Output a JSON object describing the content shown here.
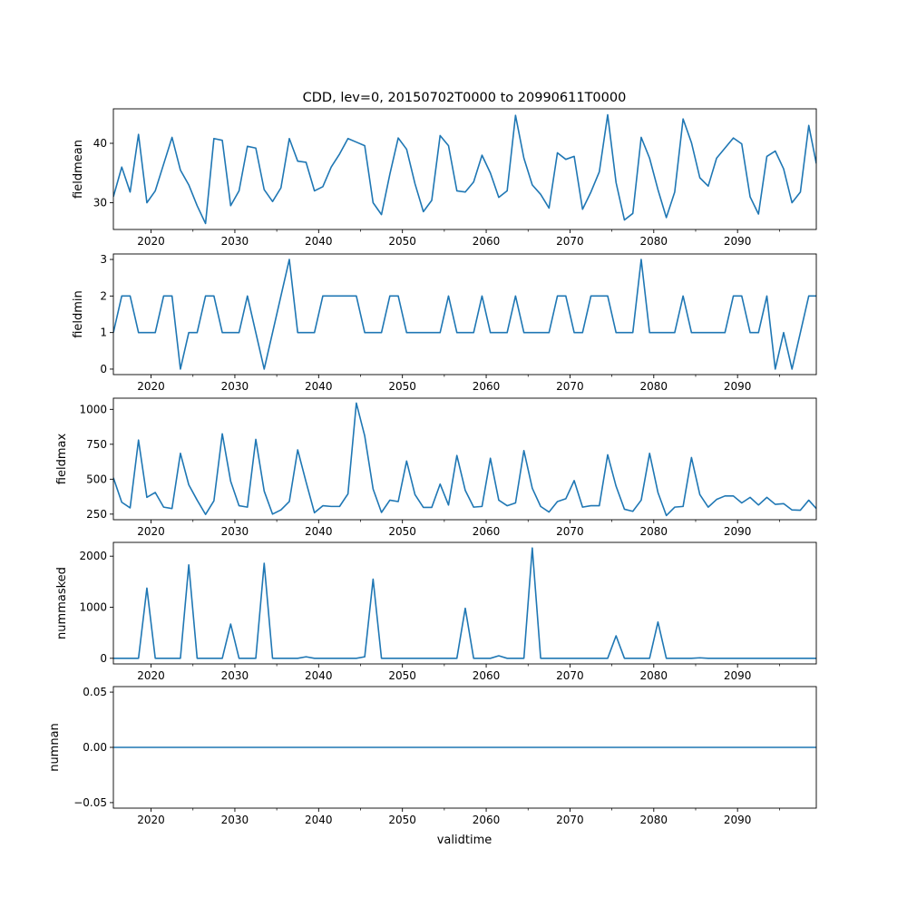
{
  "chart_data": {
    "type": "line",
    "title": "CDD, lev=0, 20150702T0000 to 20990611T0000",
    "xlabel": "validtime",
    "x_tick_labels": [
      "2020",
      "2030",
      "2040",
      "2050",
      "2060",
      "2070",
      "2080",
      "2090"
    ],
    "x_ticks": [
      2020,
      2030,
      2040,
      2050,
      2060,
      2070,
      2080,
      2090
    ],
    "xlim": [
      2015.5,
      2099.4
    ],
    "x": [
      2015.5,
      2016.5,
      2017.5,
      2018.5,
      2019.5,
      2020.5,
      2021.5,
      2022.5,
      2023.5,
      2024.5,
      2025.5,
      2026.5,
      2027.5,
      2028.5,
      2029.5,
      2030.5,
      2031.5,
      2032.5,
      2033.5,
      2034.5,
      2035.5,
      2036.5,
      2037.5,
      2038.5,
      2039.5,
      2040.5,
      2041.5,
      2042.5,
      2043.5,
      2044.5,
      2045.5,
      2046.5,
      2047.5,
      2048.5,
      2049.5,
      2050.5,
      2051.5,
      2052.5,
      2053.5,
      2054.5,
      2055.5,
      2056.5,
      2057.5,
      2058.5,
      2059.5,
      2060.5,
      2061.5,
      2062.5,
      2063.5,
      2064.5,
      2065.5,
      2066.5,
      2067.5,
      2068.5,
      2069.5,
      2070.5,
      2071.5,
      2072.5,
      2073.5,
      2074.5,
      2075.5,
      2076.5,
      2077.5,
      2078.5,
      2079.5,
      2080.5,
      2081.5,
      2082.5,
      2083.5,
      2084.5,
      2085.5,
      2086.5,
      2087.5,
      2088.5,
      2089.5,
      2090.5,
      2091.5,
      2092.5,
      2093.5,
      2094.5,
      2095.5,
      2096.5,
      2097.5,
      2098.5,
      2099.4
    ],
    "panels": [
      {
        "ylabel": "fieldmean",
        "ylim": [
          25.5,
          45.8
        ],
        "yticks": [
          30,
          40
        ],
        "ytick_labels": [
          "30",
          "40"
        ],
        "series": [
          {
            "values": [
              31,
              36,
              31.8,
              41.5,
              30,
              32,
              36.5,
              41,
              35.5,
              33,
              29.5,
              26.5,
              40.8,
              40.5,
              29.5,
              32,
              39.5,
              39.2,
              32.2,
              30.2,
              32.5,
              40.8,
              37,
              36.8,
              32,
              32.7,
              36,
              38.2,
              40.8,
              40.2,
              39.6,
              30,
              28,
              34.8,
              40.9,
              39,
              33.2,
              28.5,
              30.4,
              41.3,
              39.6,
              32,
              31.8,
              33.5,
              38,
              35,
              30.9,
              32,
              44.7,
              37.5,
              33,
              31.4,
              29.1,
              38.4,
              37.3,
              37.8,
              28.9,
              31.8,
              35.2,
              44.8,
              33.4,
              27.1,
              28.2,
              41,
              37.5,
              32.2,
              27.5,
              31.8,
              44.1,
              40.1,
              34.2,
              32.8,
              37.5,
              39.2,
              40.9,
              39.9,
              31,
              28.1,
              37.8,
              38.7,
              35.7,
              30,
              31.8,
              43,
              36.6
            ]
          }
        ]
      },
      {
        "ylabel": "fieldmin",
        "ylim": [
          -0.15,
          3.15
        ],
        "yticks": [
          0,
          1,
          2,
          3
        ],
        "ytick_labels": [
          "0",
          "1",
          "2",
          "3"
        ],
        "series": [
          {
            "values": [
              1,
              2,
              2,
              1,
              1,
              1,
              2,
              2,
              0,
              1,
              1,
              2,
              2,
              1,
              1,
              1,
              2,
              1,
              0,
              1,
              2,
              3,
              1,
              1,
              1,
              2,
              2,
              2,
              2,
              2,
              1,
              1,
              1,
              2,
              2,
              1,
              1,
              1,
              1,
              1,
              2,
              1,
              1,
              1,
              2,
              1,
              1,
              1,
              2,
              1,
              1,
              1,
              1,
              2,
              2,
              1,
              1,
              2,
              2,
              2,
              1,
              1,
              1,
              3,
              1,
              1,
              1,
              1,
              2,
              1,
              1,
              1,
              1,
              1,
              2,
              2,
              1,
              1,
              2,
              0,
              1,
              0,
              1,
              2,
              2
            ]
          }
        ]
      },
      {
        "ylabel": "fieldmax",
        "ylim": [
          210,
          1080
        ],
        "yticks": [
          250,
          500,
          750,
          1000
        ],
        "ytick_labels": [
          "250",
          "500",
          "750",
          "1000"
        ],
        "series": [
          {
            "values": [
              510,
              335,
              295,
              780,
              370,
              405,
              300,
              290,
              685,
              460,
              350,
              248,
              345,
              825,
              485,
              310,
              300,
              785,
              415,
              250,
              280,
              340,
              710,
              480,
              260,
              310,
              305,
              305,
              395,
              1045,
              810,
              430,
              262,
              350,
              340,
              630,
              390,
              298,
              298,
              465,
              315,
              670,
              420,
              300,
              305,
              650,
              350,
              310,
              330,
              705,
              435,
              305,
              265,
              340,
              360,
              490,
              300,
              310,
              310,
              675,
              450,
              285,
              270,
              350,
              685,
              405,
              240,
              300,
              305,
              655,
              390,
              300,
              355,
              380,
              380,
              330,
              370,
              315,
              370,
              320,
              325,
              280,
              278,
              350,
              290
            ]
          }
        ]
      },
      {
        "ylabel": "nummasked",
        "ylim": [
          -110,
          2270
        ],
        "yticks": [
          0,
          1000,
          2000
        ],
        "ytick_labels": [
          "0",
          "1000",
          "2000"
        ],
        "series": [
          {
            "values": [
              0,
              0,
              0,
              0,
              1375,
              0,
              0,
              0,
              0,
              1830,
              0,
              0,
              0,
              0,
              670,
              0,
              0,
              0,
              1860,
              0,
              0,
              0,
              0,
              30,
              0,
              0,
              0,
              0,
              0,
              0,
              30,
              1550,
              0,
              0,
              0,
              0,
              0,
              0,
              0,
              0,
              0,
              0,
              980,
              0,
              0,
              0,
              50,
              0,
              0,
              0,
              2160,
              0,
              0,
              0,
              0,
              0,
              0,
              0,
              0,
              0,
              440,
              0,
              0,
              0,
              0,
              710,
              0,
              0,
              0,
              0,
              10,
              0,
              0,
              0,
              0,
              0,
              0,
              0,
              0,
              0,
              0,
              0,
              0,
              0,
              0
            ]
          }
        ]
      },
      {
        "ylabel": "numnan",
        "ylim": [
          -0.055,
          0.055
        ],
        "yticks": [
          -0.05,
          0,
          0.05
        ],
        "ytick_labels": [
          "−0.05",
          "0.00",
          "0.05"
        ],
        "series": [
          {
            "values": [
              0,
              0,
              0,
              0,
              0,
              0,
              0,
              0,
              0,
              0,
              0,
              0,
              0,
              0,
              0,
              0,
              0,
              0,
              0,
              0,
              0,
              0,
              0,
              0,
              0,
              0,
              0,
              0,
              0,
              0,
              0,
              0,
              0,
              0,
              0,
              0,
              0,
              0,
              0,
              0,
              0,
              0,
              0,
              0,
              0,
              0,
              0,
              0,
              0,
              0,
              0,
              0,
              0,
              0,
              0,
              0,
              0,
              0,
              0,
              0,
              0,
              0,
              0,
              0,
              0,
              0,
              0,
              0,
              0,
              0,
              0,
              0,
              0,
              0,
              0,
              0,
              0,
              0,
              0,
              0,
              0,
              0,
              0,
              0,
              0
            ]
          }
        ]
      }
    ],
    "line_color": "#1f77b4",
    "grid": false
  }
}
